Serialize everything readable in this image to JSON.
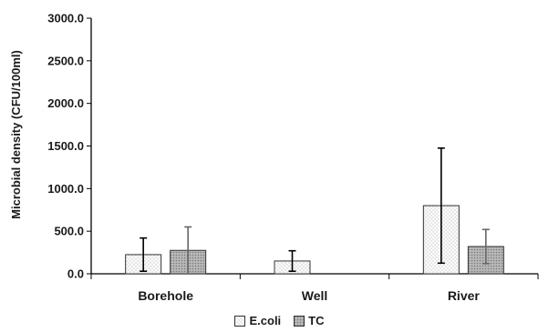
{
  "chart_data": {
    "type": "bar",
    "title": "",
    "xlabel": "",
    "ylabel": "Microbial density (CFU/100ml)",
    "ylim": [
      0,
      3000
    ],
    "yticks": [
      "0.0",
      "500.0",
      "1000.0",
      "1500.0",
      "2000.0",
      "2500.0",
      "3000.0"
    ],
    "categories": [
      "Borehole",
      "Well",
      "River"
    ],
    "series": [
      {
        "name": "E.coli",
        "values": [
          225,
          150,
          800
        ],
        "err_high": [
          420,
          270,
          1475
        ],
        "err_low": [
          30,
          30,
          125
        ],
        "color": "#f5f5f5",
        "pattern": "dots"
      },
      {
        "name": "TC",
        "values": [
          275,
          null,
          320
        ],
        "err_high": [
          550,
          null,
          520
        ],
        "err_low": [
          0,
          null,
          120
        ],
        "color": "#b0b0b0",
        "pattern": "dense"
      }
    ],
    "legend_position": "bottom"
  }
}
